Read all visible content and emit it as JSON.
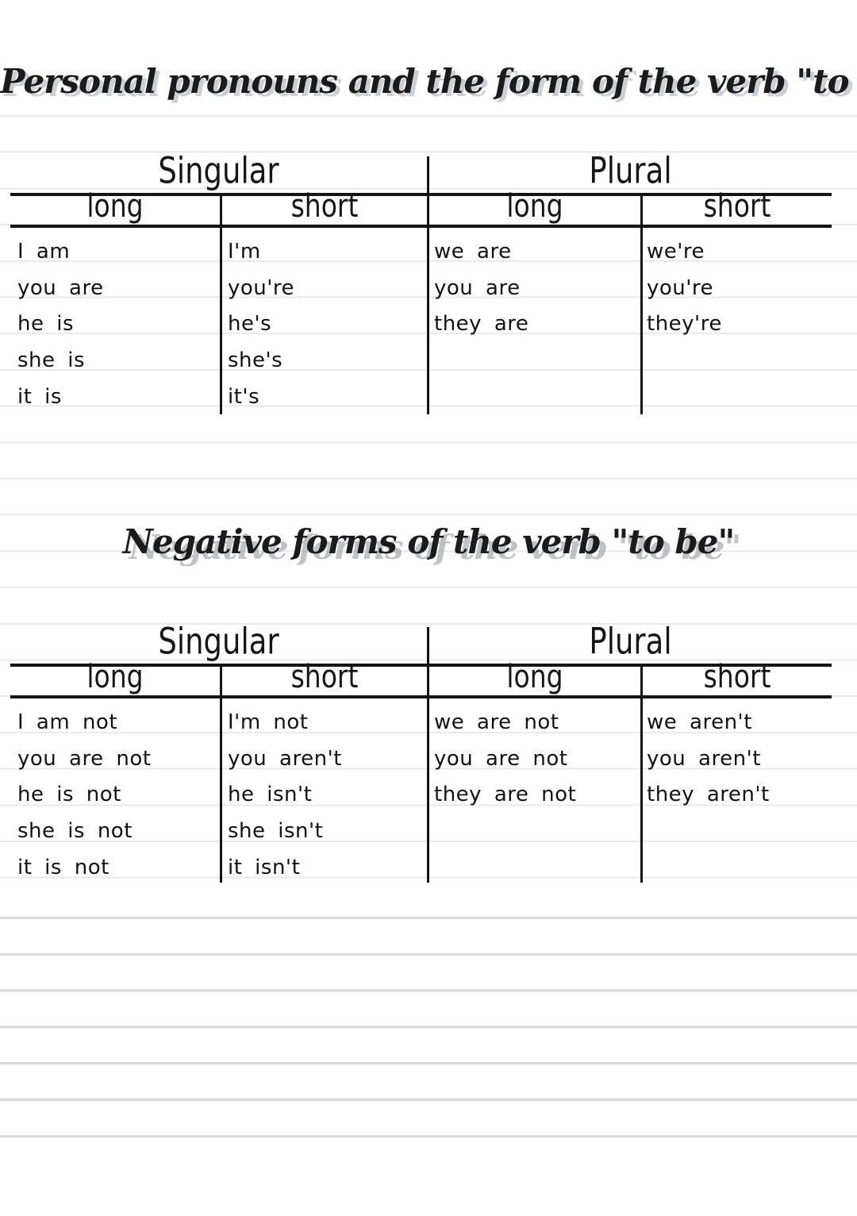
{
  "page": {
    "title1": "Personal pronouns and the form of the verb \"to be\"",
    "title2": "Negative forms of the verb \"to be\""
  },
  "table1": {
    "group_headers": [
      "Singular",
      "Plural"
    ],
    "col_headers": [
      "long",
      "short",
      "long",
      "short"
    ],
    "columns": {
      "singular_long": [
        "I am",
        "you are",
        "he is",
        "she is",
        "it is"
      ],
      "singular_short": [
        "I'm",
        "you're",
        "he's",
        "she's",
        "it's"
      ],
      "plural_long": [
        "we are",
        "you are",
        "they are"
      ],
      "plural_short": [
        "we're",
        "you're",
        "they're"
      ]
    }
  },
  "table2": {
    "group_headers": [
      "Singular",
      "Plural"
    ],
    "col_headers": [
      "long",
      "short",
      "long",
      "short"
    ],
    "columns": {
      "singular_long": [
        "I am not",
        "you are not",
        "he is not",
        "she is not",
        "it is not"
      ],
      "singular_short": [
        "I'm not",
        "you aren't",
        "he isn't",
        "she isn't",
        "it isn't"
      ],
      "plural_long": [
        "we are not",
        "you are not",
        "they are not"
      ],
      "plural_short": [
        "we aren't",
        "you aren't",
        "they aren't"
      ]
    }
  },
  "colors": {
    "table_line": "#141414",
    "ruled_line_light": "#eaeaea",
    "ruled_line_dark": "#d9d9d9",
    "title_shadow": "#9ba4ac"
  }
}
